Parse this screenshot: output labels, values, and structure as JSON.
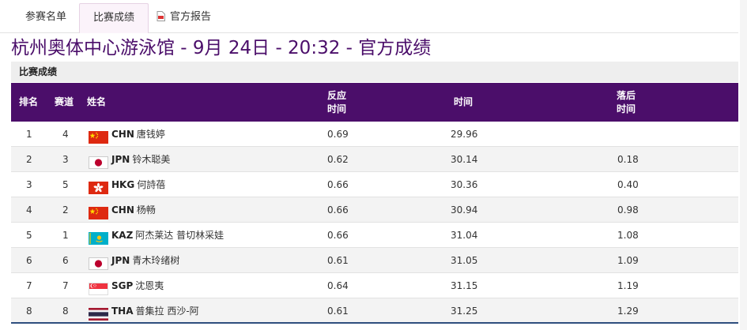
{
  "tabs": [
    {
      "label": "参赛名单"
    },
    {
      "label": "比赛成绩"
    },
    {
      "label": "官方报告"
    }
  ],
  "title": "杭州奥体中心游泳馆 - 9月 24日 - 20:32 - 官方成绩",
  "section_label": "比赛成绩",
  "headers": {
    "rank": "排名",
    "lane": "赛道",
    "name": "姓名",
    "reaction_1": "反应",
    "reaction_2": "时间",
    "time": "时间",
    "behind_1": "落后",
    "behind_2": "时间"
  },
  "rows": [
    {
      "rank": "1",
      "lane": "4",
      "code": "CHN",
      "name": "唐钱婷",
      "reaction": "0.69",
      "time": "29.96",
      "behind": "",
      "flag": "CHN"
    },
    {
      "rank": "2",
      "lane": "3",
      "code": "JPN",
      "name": "铃木聪美",
      "reaction": "0.62",
      "time": "30.14",
      "behind": "0.18",
      "flag": "JPN"
    },
    {
      "rank": "3",
      "lane": "5",
      "code": "HKG",
      "name": "何詩蓓",
      "reaction": "0.66",
      "time": "30.36",
      "behind": "0.40",
      "flag": "HKG"
    },
    {
      "rank": "4",
      "lane": "2",
      "code": "CHN",
      "name": "杨畅",
      "reaction": "0.66",
      "time": "30.94",
      "behind": "0.98",
      "flag": "CHN"
    },
    {
      "rank": "5",
      "lane": "1",
      "code": "KAZ",
      "name": "阿杰莱达 普切林采娃",
      "reaction": "0.66",
      "time": "31.04",
      "behind": "1.08",
      "flag": "KAZ"
    },
    {
      "rank": "6",
      "lane": "6",
      "code": "JPN",
      "name": "青木玲绪树",
      "reaction": "0.61",
      "time": "31.05",
      "behind": "1.09",
      "flag": "JPN"
    },
    {
      "rank": "7",
      "lane": "7",
      "code": "SGP",
      "name": "沈恩夷",
      "reaction": "0.64",
      "time": "31.15",
      "behind": "1.19",
      "flag": "SGP"
    },
    {
      "rank": "8",
      "lane": "8",
      "code": "THA",
      "name": "普集拉 西沙-阿",
      "reaction": "0.61",
      "time": "31.25",
      "behind": "1.29",
      "flag": "THA"
    }
  ],
  "colors": {
    "header_bg": "#4b0e6a",
    "title": "#4b0e6a",
    "alt_row": "#f3f3f3"
  }
}
